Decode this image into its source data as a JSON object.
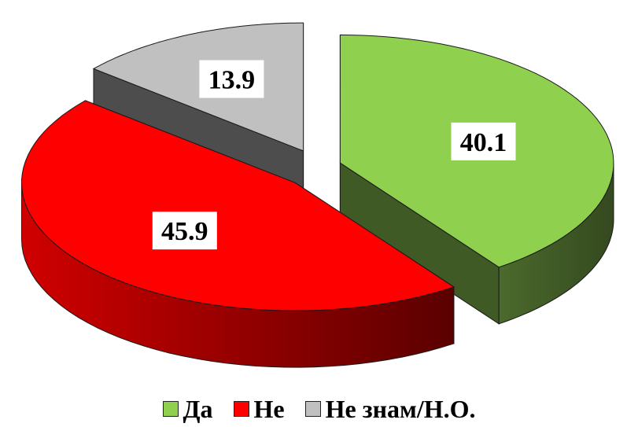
{
  "chart_data": {
    "type": "pie",
    "title": "",
    "categories": [
      "Да",
      "Не",
      "Не знам/Н.О."
    ],
    "values": [
      40.1,
      45.9,
      13.9
    ],
    "data_labels": [
      "40.1",
      "45.9",
      "13.9"
    ],
    "colors": {
      "Да": {
        "top": "#8fd14f",
        "side": "#3f5a25"
      },
      "Не": {
        "top": "#ff0000",
        "side": "#b40000"
      },
      "Не знам/Н.О.": {
        "top": "#c0c0c0",
        "side": "#4d4d4d"
      }
    },
    "style": "3d-exploded",
    "legend": {
      "position": "bottom",
      "items": [
        {
          "label": "Да",
          "color": "#8fd14f"
        },
        {
          "label": "Не",
          "color": "#ff0000"
        },
        {
          "label": "Не знам/Н.О.",
          "color": "#c0c0c0"
        }
      ]
    }
  }
}
